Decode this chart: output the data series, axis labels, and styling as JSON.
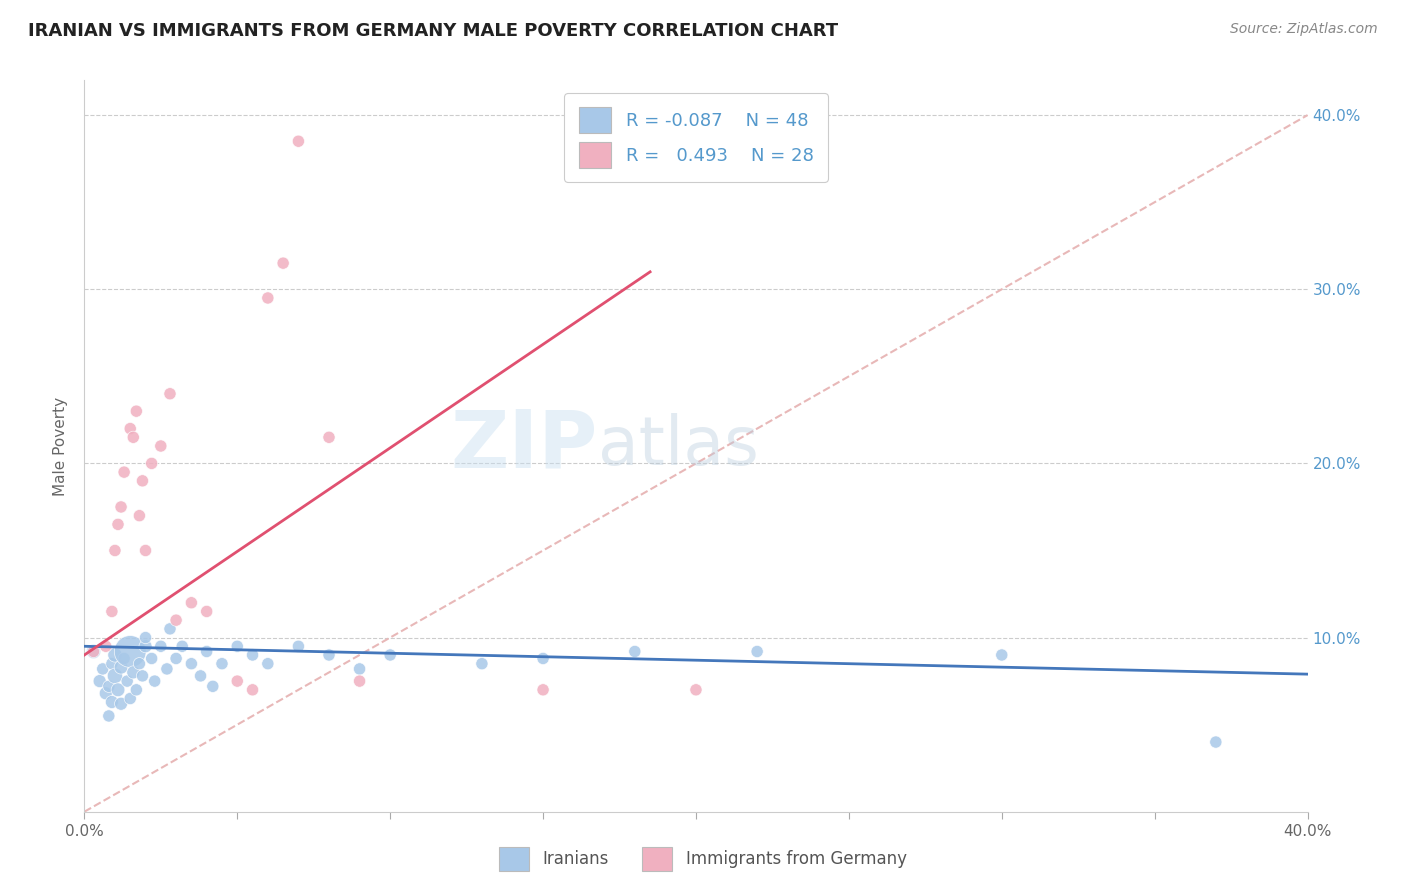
{
  "title": "IRANIAN VS IMMIGRANTS FROM GERMANY MALE POVERTY CORRELATION CHART",
  "source": "Source: ZipAtlas.com",
  "ylabel": "Male Poverty",
  "xlim": [
    0.0,
    0.4
  ],
  "ylim": [
    0.0,
    0.42
  ],
  "x_ticks": [
    0.0,
    0.05,
    0.1,
    0.15,
    0.2,
    0.25,
    0.3,
    0.35,
    0.4
  ],
  "y_ticks": [
    0.0,
    0.1,
    0.2,
    0.3,
    0.4
  ],
  "color_iranians": "#a8c8e8",
  "color_germany": "#f0b0c0",
  "line_color_iranians": "#4477bb",
  "line_color_germany": "#e05070",
  "diagonal_color": "#e8b8b8",
  "iranians_x": [
    0.003,
    0.005,
    0.006,
    0.007,
    0.008,
    0.008,
    0.009,
    0.009,
    0.01,
    0.01,
    0.011,
    0.012,
    0.012,
    0.013,
    0.014,
    0.015,
    0.015,
    0.016,
    0.017,
    0.018,
    0.019,
    0.02,
    0.02,
    0.022,
    0.023,
    0.025,
    0.027,
    0.028,
    0.03,
    0.032,
    0.035,
    0.038,
    0.04,
    0.042,
    0.045,
    0.05,
    0.055,
    0.06,
    0.07,
    0.08,
    0.09,
    0.1,
    0.13,
    0.15,
    0.18,
    0.22,
    0.3,
    0.37
  ],
  "iranians_y": [
    0.092,
    0.075,
    0.082,
    0.068,
    0.055,
    0.072,
    0.063,
    0.085,
    0.078,
    0.09,
    0.07,
    0.062,
    0.083,
    0.088,
    0.075,
    0.065,
    0.092,
    0.08,
    0.07,
    0.085,
    0.078,
    0.095,
    0.1,
    0.088,
    0.075,
    0.095,
    0.082,
    0.105,
    0.088,
    0.095,
    0.085,
    0.078,
    0.092,
    0.072,
    0.085,
    0.095,
    0.09,
    0.085,
    0.095,
    0.09,
    0.082,
    0.09,
    0.085,
    0.088,
    0.092,
    0.092,
    0.09,
    0.04
  ],
  "iranians_size": [
    30,
    25,
    22,
    25,
    22,
    22,
    25,
    22,
    35,
    30,
    28,
    25,
    28,
    22,
    22,
    22,
    150,
    25,
    22,
    22,
    22,
    25,
    22,
    22,
    22,
    22,
    22,
    22,
    22,
    22,
    22,
    22,
    22,
    22,
    22,
    22,
    22,
    22,
    22,
    22,
    22,
    22,
    22,
    22,
    22,
    22,
    22,
    22
  ],
  "germany_x": [
    0.003,
    0.007,
    0.009,
    0.01,
    0.011,
    0.012,
    0.013,
    0.015,
    0.016,
    0.017,
    0.018,
    0.019,
    0.02,
    0.022,
    0.025,
    0.028,
    0.03,
    0.035,
    0.04,
    0.05,
    0.055,
    0.06,
    0.065,
    0.07,
    0.08,
    0.09,
    0.15,
    0.2
  ],
  "germany_y": [
    0.092,
    0.095,
    0.115,
    0.15,
    0.165,
    0.175,
    0.195,
    0.22,
    0.215,
    0.23,
    0.17,
    0.19,
    0.15,
    0.2,
    0.21,
    0.24,
    0.11,
    0.12,
    0.115,
    0.075,
    0.07,
    0.295,
    0.315,
    0.385,
    0.215,
    0.075,
    0.07,
    0.07
  ],
  "germany_size": [
    22,
    22,
    22,
    22,
    22,
    22,
    22,
    22,
    22,
    22,
    22,
    22,
    22,
    22,
    22,
    22,
    22,
    22,
    22,
    22,
    22,
    22,
    22,
    22,
    22,
    22,
    22,
    22
  ],
  "iran_line_x0": 0.0,
  "iran_line_x1": 0.4,
  "iran_line_y0": 0.095,
  "iran_line_y1": 0.079,
  "germany_line_x0": 0.0,
  "germany_line_x1": 0.185,
  "germany_line_y0": 0.09,
  "germany_line_y1": 0.31
}
